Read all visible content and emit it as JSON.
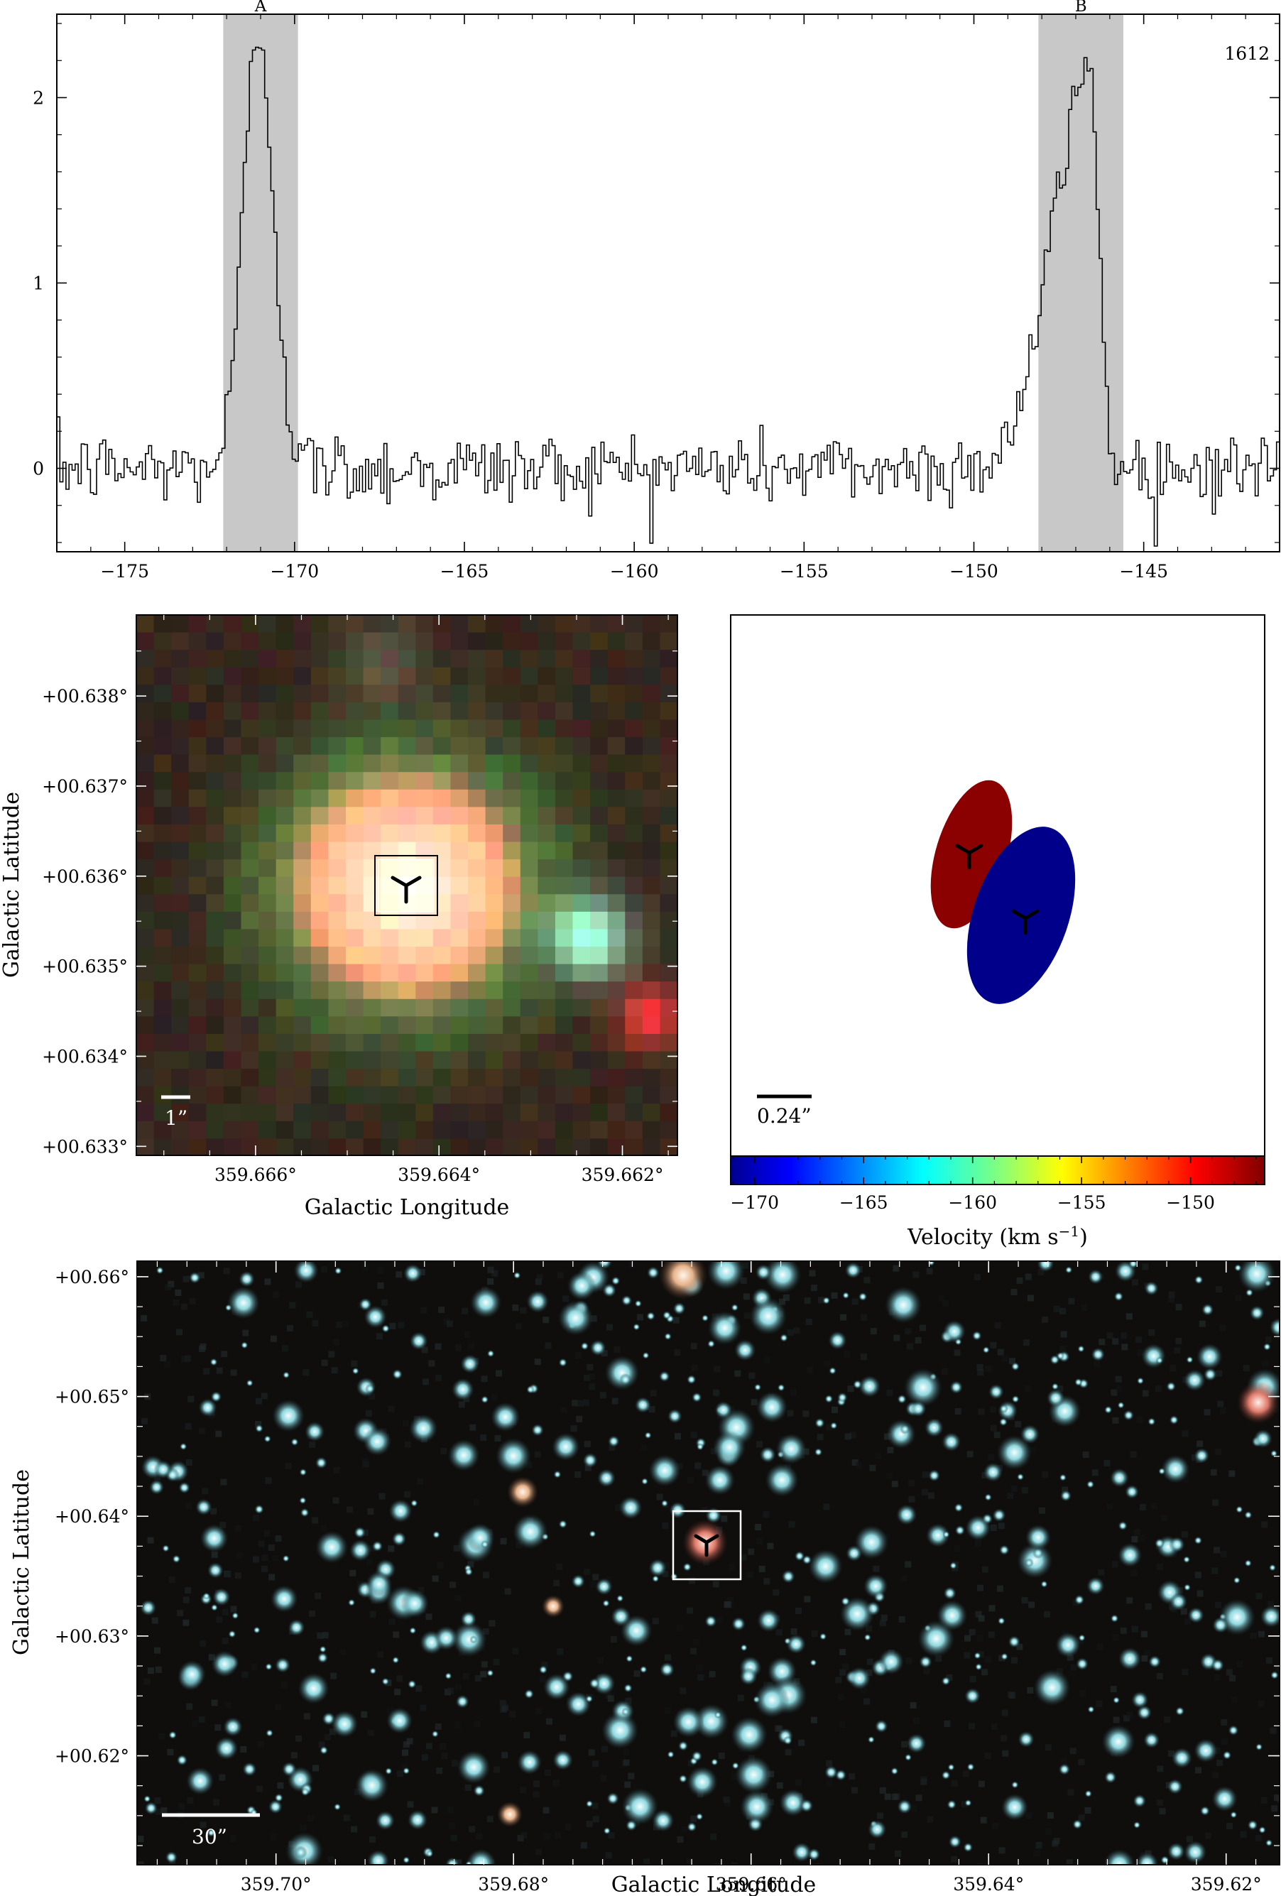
{
  "chart_data": [
    {
      "type": "line",
      "panel": "spectrum",
      "corner_label": "1612",
      "x_ticks": [
        -175,
        -170,
        -165,
        -160,
        -155,
        -150,
        -145
      ],
      "y_ticks": [
        0,
        1,
        2
      ],
      "xlim": [
        -177,
        -141
      ],
      "ylim": [
        -0.45,
        2.45
      ],
      "step": true,
      "shaded_regions": [
        {
          "label": "A",
          "x0": -172.1,
          "x1": -169.9
        },
        {
          "label": "B",
          "x0": -148.1,
          "x1": -145.6
        }
      ],
      "peaks": [
        {
          "center": -171.1,
          "height": 2.35,
          "width_left": 0.45,
          "width_right": 0.45
        },
        {
          "center": -146.6,
          "height": 2.15,
          "width_left": 1.1,
          "width_right": 0.25
        }
      ],
      "noise_rms": 0.1,
      "channel_width": 0.09
    },
    {
      "type": "image",
      "panel": "zoom-image",
      "x_ticks": [
        "359.666°",
        "359.664°",
        "359.662°"
      ],
      "x_tick_values": [
        359.666,
        359.664,
        359.662
      ],
      "y_ticks": [
        "+00.633°",
        "+00.634°",
        "+00.635°",
        "+00.636°",
        "+00.637°",
        "+00.638°"
      ],
      "y_tick_values": [
        0.633,
        0.634,
        0.635,
        0.636,
        0.637,
        0.638
      ],
      "xlim": [
        359.6673,
        359.6614
      ],
      "ylim": [
        0.6329,
        0.6389
      ],
      "xlabel": "Galactic Longitude",
      "ylabel": "Galactic Latitude",
      "scale_bar_label": "1”",
      "marker": {
        "l": 359.664,
        "b": 0.636
      }
    },
    {
      "type": "scatter",
      "panel": "maser-spots",
      "scale_bar_label": "0.24”",
      "spots": [
        {
          "name": "red-spot",
          "color": "#8b0000",
          "velocity": -146.6
        },
        {
          "name": "blue-spot",
          "color": "#00008b",
          "velocity": -171.1
        }
      ],
      "colorbar": {
        "ticks": [
          -170,
          -165,
          -160,
          -155,
          -150
        ],
        "range": [
          -171.1,
          -146.6
        ],
        "label_main": "Velocity (km s",
        "label_sup": "−1",
        "label_end": ")"
      }
    },
    {
      "type": "image",
      "panel": "wide-field",
      "x_ticks": [
        "359.70°",
        "359.68°",
        "359.66°",
        "359.64°",
        "359.62°"
      ],
      "x_tick_values": [
        359.7,
        359.68,
        359.66,
        359.64,
        359.62
      ],
      "y_ticks": [
        "+00.62°",
        "+00.63°",
        "+00.64°",
        "+00.65°",
        "+00.66°"
      ],
      "y_tick_values": [
        0.62,
        0.63,
        0.64,
        0.65,
        0.66
      ],
      "xlim": [
        359.7117,
        359.6155
      ],
      "ylim": [
        0.6109,
        0.6613
      ],
      "xlabel": "Galactic Longitude",
      "ylabel": "Galactic Latitude",
      "scale_bar_label": "30”",
      "marker": {
        "l": 359.664,
        "b": 0.636
      }
    }
  ]
}
